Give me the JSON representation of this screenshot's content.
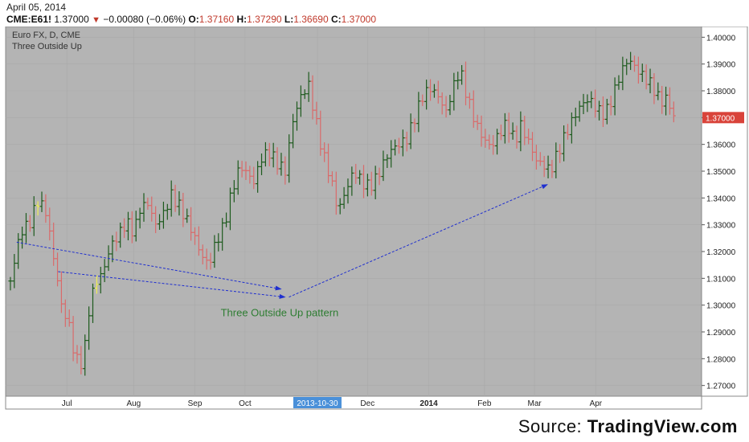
{
  "header": {
    "date": "April 05, 2014",
    "symbol": "CME:E61!",
    "last": "1.37000",
    "change": "−0.00080 (−0.06%)",
    "open_label": "O:",
    "open": "1.37160",
    "high_label": "H:",
    "high": "1.37290",
    "low_label": "L:",
    "low": "1.36690",
    "close_label": "C:",
    "close": "1.37000"
  },
  "source": {
    "prefix": "Source: ",
    "brand": "TradingView.com"
  },
  "colors": {
    "plot_bg": "#b4b4b4",
    "up": "#1d5a1d",
    "down": "#d96a6a",
    "highlight": "#eeee55",
    "annotation": "#1f2fd0",
    "annotation_text": "#2e7d32",
    "price_tag": "#d9433a",
    "date_tag": "#4a90d9"
  },
  "chart_data": {
    "type": "ohlc_bar",
    "title": "Euro FX, D, CME",
    "subtitle": "Three Outside Up",
    "ylim": [
      1.266,
      1.404
    ],
    "y_ticks": [
      "1.40000",
      "1.39000",
      "1.38000",
      "1.37000",
      "1.36000",
      "1.35000",
      "1.34000",
      "1.33000",
      "1.32000",
      "1.31000",
      "1.30000",
      "1.29000",
      "1.28000",
      "1.27000"
    ],
    "x_ticks": [
      "Jul",
      "Aug",
      "Sep",
      "Oct",
      "2013-10-30",
      "Dec",
      "2014",
      "Feb",
      "Mar",
      "Apr"
    ],
    "x_tick_positions": [
      0.11,
      0.23,
      0.34,
      0.43,
      0.56,
      0.65,
      0.76,
      0.86,
      0.95,
      1.06
    ],
    "price_tag": "1.37000",
    "annotation": "Three Outside Up pattern",
    "path": [
      [
        0,
        1.309
      ],
      [
        5,
        1.327
      ],
      [
        10,
        1.331
      ],
      [
        14,
        1.339
      ],
      [
        18,
        1.335
      ],
      [
        22,
        1.318
      ],
      [
        26,
        1.3
      ],
      [
        30,
        1.292
      ],
      [
        33,
        1.28
      ],
      [
        37,
        1.278
      ],
      [
        40,
        1.298
      ],
      [
        43,
        1.308
      ],
      [
        47,
        1.312
      ],
      [
        51,
        1.322
      ],
      [
        55,
        1.326
      ],
      [
        59,
        1.331
      ],
      [
        63,
        1.327
      ],
      [
        66,
        1.336
      ],
      [
        70,
        1.338
      ],
      [
        74,
        1.33
      ],
      [
        78,
        1.334
      ],
      [
        82,
        1.341
      ],
      [
        86,
        1.337
      ],
      [
        89,
        1.333
      ],
      [
        93,
        1.327
      ],
      [
        97,
        1.319
      ],
      [
        101,
        1.315
      ],
      [
        105,
        1.324
      ],
      [
        109,
        1.33
      ],
      [
        113,
        1.343
      ],
      [
        117,
        1.352
      ],
      [
        121,
        1.349
      ],
      [
        124,
        1.346
      ],
      [
        128,
        1.355
      ],
      [
        132,
        1.357
      ],
      [
        136,
        1.353
      ],
      [
        140,
        1.35
      ],
      [
        144,
        1.369
      ],
      [
        148,
        1.378
      ],
      [
        152,
        1.382
      ],
      [
        155,
        1.371
      ],
      [
        159,
        1.357
      ],
      [
        163,
        1.348
      ],
      [
        167,
        1.335
      ],
      [
        171,
        1.343
      ],
      [
        175,
        1.35
      ],
      [
        179,
        1.346
      ],
      [
        183,
        1.344
      ],
      [
        187,
        1.348
      ],
      [
        190,
        1.353
      ],
      [
        194,
        1.358
      ],
      [
        198,
        1.36
      ],
      [
        202,
        1.362
      ],
      [
        206,
        1.37
      ],
      [
        210,
        1.378
      ],
      [
        214,
        1.381
      ],
      [
        218,
        1.378
      ],
      [
        222,
        1.372
      ],
      [
        225,
        1.38
      ],
      [
        229,
        1.388
      ],
      [
        233,
        1.377
      ],
      [
        237,
        1.368
      ],
      [
        241,
        1.362
      ],
      [
        245,
        1.359
      ],
      [
        249,
        1.364
      ],
      [
        253,
        1.368
      ],
      [
        257,
        1.361
      ],
      [
        260,
        1.367
      ],
      [
        264,
        1.361
      ],
      [
        268,
        1.354
      ],
      [
        272,
        1.352
      ],
      [
        275,
        1.35
      ],
      [
        279,
        1.357
      ],
      [
        283,
        1.364
      ],
      [
        287,
        1.37
      ],
      [
        291,
        1.375
      ],
      [
        295,
        1.377
      ],
      [
        299,
        1.373
      ],
      [
        303,
        1.371
      ],
      [
        307,
        1.378
      ],
      [
        311,
        1.387
      ],
      [
        315,
        1.392
      ],
      [
        319,
        1.388
      ],
      [
        323,
        1.385
      ],
      [
        327,
        1.382
      ],
      [
        331,
        1.376
      ],
      [
        335,
        1.377
      ],
      [
        338,
        1.37
      ]
    ],
    "highlight_bars": [
      7,
      22,
      221
    ],
    "arrows": [
      {
        "from": [
          4,
          1.3235
        ],
        "to": [
          138,
          1.306
        ]
      },
      {
        "from": [
          25,
          1.3125
        ],
        "to": [
          140,
          1.303
        ]
      },
      {
        "from": [
          142,
          1.303
        ],
        "to": [
          273,
          1.345
        ]
      }
    ]
  }
}
